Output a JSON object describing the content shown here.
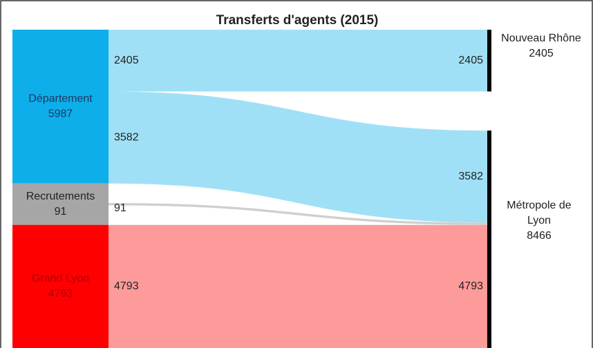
{
  "chart_data": {
    "type": "sankey",
    "title": "Transferts d'agents (2015)",
    "nodes": [
      {
        "name": "Département",
        "value": 5987,
        "color": "#0eaeea",
        "label_color": "#1f3864",
        "side": "left"
      },
      {
        "name": "Recrutements",
        "value": 91,
        "color": "#a6a6a6",
        "label_color": "#222222",
        "side": "left"
      },
      {
        "name": "Grand Lyon",
        "value": 4793,
        "color": "#ff0000",
        "label_color": "#b00000",
        "side": "left"
      },
      {
        "name": "Nouveau Rhône",
        "value": 2405,
        "color": "#000000",
        "label_color": "#222222",
        "side": "right"
      },
      {
        "name": "Métropole de Lyon",
        "value": 8466,
        "color": "#000000",
        "label_color": "#222222",
        "side": "right"
      }
    ],
    "links": [
      {
        "source": 0,
        "target": 3,
        "value": 2405,
        "color": "#a0e0f7"
      },
      {
        "source": 0,
        "target": 4,
        "value": 3582,
        "color": "#a0e0f7"
      },
      {
        "source": 1,
        "target": 4,
        "value": 91,
        "color": "#cfcfcf"
      },
      {
        "source": 2,
        "target": 4,
        "value": 4793,
        "color": "#fd9a9a"
      }
    ]
  }
}
